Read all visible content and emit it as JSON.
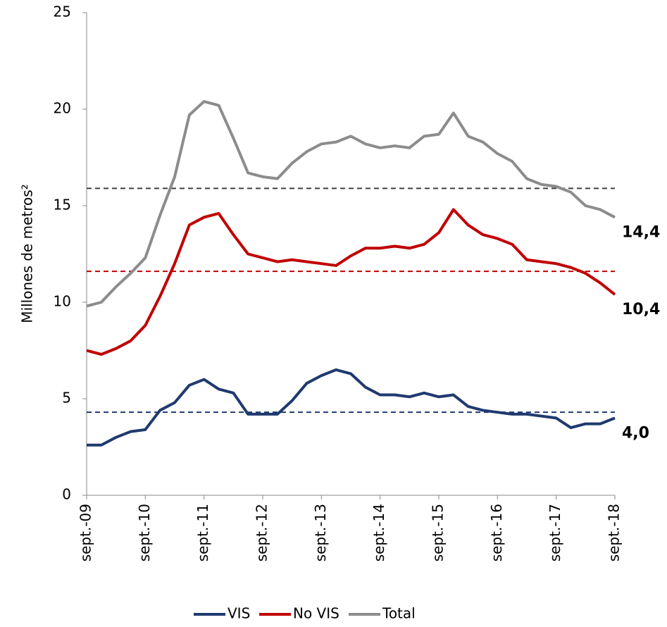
{
  "chart_data": {
    "type": "line",
    "y_label": "Millones de  metros²",
    "categories": [
      "sept.-09",
      null,
      null,
      null,
      "sept.-10",
      null,
      null,
      null,
      "sept.-11",
      null,
      null,
      null,
      "sept.-12",
      null,
      null,
      null,
      "sept.-13",
      null,
      null,
      null,
      "sept.-14",
      null,
      null,
      null,
      "sept.-15",
      null,
      null,
      null,
      "sept.-16",
      null,
      null,
      null,
      "sept.-17",
      null,
      null,
      null,
      "sept.-18"
    ],
    "series": [
      {
        "name": "VIS",
        "color": "#1f3a6e",
        "end_label": "4,0",
        "values": [
          2.6,
          2.6,
          3.0,
          3.3,
          3.4,
          4.4,
          4.8,
          5.7,
          6.0,
          5.5,
          5.3,
          4.2,
          4.2,
          4.2,
          4.9,
          5.8,
          6.2,
          6.5,
          6.3,
          5.6,
          5.2,
          5.2,
          5.1,
          5.3,
          5.1,
          5.2,
          4.6,
          4.4,
          4.3,
          4.2,
          4.2,
          4.1,
          4.0,
          3.5,
          3.7,
          3.7,
          4.0
        ]
      },
      {
        "name": "No VIS",
        "color": "#c00000",
        "end_label": "10,4",
        "values": [
          7.5,
          7.3,
          7.6,
          8.0,
          8.8,
          10.3,
          12.0,
          14.0,
          14.4,
          14.6,
          13.5,
          12.5,
          12.3,
          12.1,
          12.2,
          12.1,
          12.0,
          11.9,
          12.4,
          12.8,
          12.8,
          12.9,
          12.8,
          13.0,
          13.6,
          14.8,
          14.0,
          13.5,
          13.3,
          13.0,
          12.2,
          12.1,
          12.0,
          11.8,
          11.5,
          11.0,
          10.4
        ]
      },
      {
        "name": "Total",
        "color": "#8c8c8c",
        "end_label": "14,4",
        "values": [
          9.8,
          10.0,
          10.8,
          11.5,
          12.3,
          14.5,
          16.5,
          19.7,
          20.4,
          20.2,
          18.5,
          16.7,
          16.5,
          16.4,
          17.2,
          17.8,
          18.2,
          18.3,
          18.6,
          18.2,
          18.0,
          18.1,
          18.0,
          18.6,
          18.7,
          19.8,
          18.6,
          18.3,
          17.7,
          17.3,
          16.4,
          16.1,
          16.0,
          15.7,
          15.0,
          14.8,
          14.4
        ]
      }
    ],
    "reference_lines": [
      {
        "value": 4.3,
        "color": "#1f3a6e"
      },
      {
        "value": 11.6,
        "color": "#c00000"
      },
      {
        "value": 15.9,
        "color": "#404040"
      }
    ],
    "ylim": [
      0,
      25
    ],
    "yticks": [
      0,
      5,
      10,
      15,
      20,
      25
    ],
    "legend": "bottom"
  }
}
